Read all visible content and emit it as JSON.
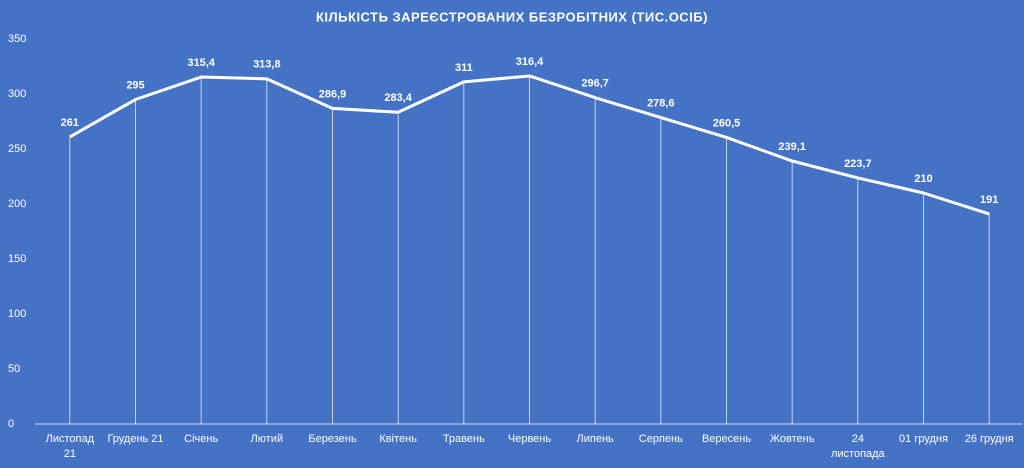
{
  "chart_data": {
    "type": "line",
    "title": "КІЛЬКІСТЬ ЗАРЕЄСТРОВАНИХ БЕЗРОБІТНИХ (ТИС.ОСІБ)",
    "categories": [
      "Листопад\n21",
      "Грудень 21",
      "Січень",
      "Лютий",
      "Березень",
      "Квітень",
      "Травень",
      "Червень",
      "Липень",
      "Серпень",
      "Вересень",
      "Жовтень",
      "24\nлистопада",
      "01 грудня",
      "26 грудня"
    ],
    "values": [
      261,
      295,
      315.4,
      313.8,
      286.9,
      283.4,
      311,
      316.4,
      296.7,
      278.6,
      260.5,
      239.1,
      223.7,
      210,
      191
    ],
    "value_labels": [
      "261",
      "295",
      "315,4",
      "313,8",
      "286,9",
      "283,4",
      "311",
      "316,4",
      "296,7",
      "278,6",
      "260,5",
      "239,1",
      "223,7",
      "210",
      "191"
    ],
    "color": "#ffffff",
    "drop_lines": true,
    "ylim": [
      0,
      350
    ],
    "yticks": [
      0,
      50,
      100,
      150,
      200,
      250,
      300,
      350
    ]
  }
}
